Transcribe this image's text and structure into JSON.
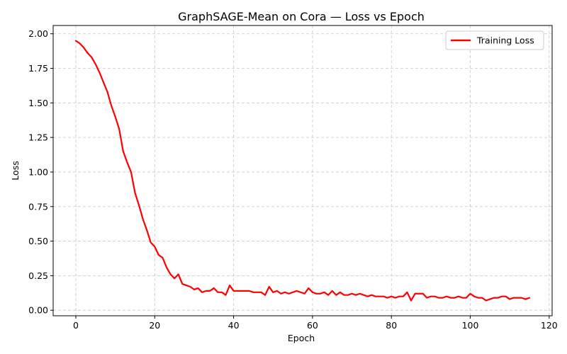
{
  "chart_data": {
    "type": "line",
    "title": "GraphSAGE-Mean on Cora — Loss vs Epoch",
    "xlabel": "Epoch",
    "ylabel": "Loss",
    "xlim": [
      -5.75,
      120.75
    ],
    "ylim": [
      -0.04,
      2.06
    ],
    "xticks": [
      0,
      20,
      40,
      60,
      80,
      100,
      120
    ],
    "yticks": [
      0.0,
      0.25,
      0.5,
      0.75,
      1.0,
      1.25,
      1.5,
      1.75,
      2.0
    ],
    "xtick_labels": [
      "0",
      "20",
      "40",
      "60",
      "80",
      "100",
      "120"
    ],
    "ytick_labels": [
      "0.00",
      "0.25",
      "0.50",
      "0.75",
      "1.00",
      "1.25",
      "1.50",
      "1.75",
      "2.00"
    ],
    "grid": true,
    "legend_position": "top-right",
    "series": [
      {
        "name": "Training Loss",
        "color": "#ff0000",
        "x": [
          0,
          1,
          2,
          3,
          4,
          5,
          6,
          7,
          8,
          9,
          10,
          11,
          12,
          13,
          14,
          15,
          16,
          17,
          18,
          19,
          20,
          21,
          22,
          23,
          24,
          25,
          26,
          27,
          28,
          29,
          30,
          31,
          32,
          33,
          34,
          35,
          36,
          37,
          38,
          39,
          40,
          41,
          42,
          43,
          44,
          45,
          46,
          47,
          48,
          49,
          50,
          51,
          52,
          53,
          54,
          55,
          56,
          57,
          58,
          59,
          60,
          61,
          62,
          63,
          64,
          65,
          66,
          67,
          68,
          69,
          70,
          71,
          72,
          73,
          74,
          75,
          76,
          77,
          78,
          79,
          80,
          81,
          82,
          83,
          84,
          85,
          86,
          87,
          88,
          89,
          90,
          91,
          92,
          93,
          94,
          95,
          96,
          97,
          98,
          99,
          100,
          101,
          102,
          103,
          104,
          105,
          106,
          107,
          108,
          109,
          110,
          111,
          112,
          113,
          114,
          115
        ],
        "y": [
          1.95,
          1.93,
          1.9,
          1.86,
          1.83,
          1.78,
          1.72,
          1.65,
          1.58,
          1.48,
          1.4,
          1.31,
          1.15,
          1.07,
          1.0,
          0.85,
          0.76,
          0.66,
          0.58,
          0.49,
          0.46,
          0.4,
          0.38,
          0.31,
          0.26,
          0.23,
          0.26,
          0.19,
          0.18,
          0.17,
          0.15,
          0.16,
          0.13,
          0.14,
          0.14,
          0.16,
          0.13,
          0.13,
          0.11,
          0.18,
          0.14,
          0.14,
          0.14,
          0.14,
          0.14,
          0.13,
          0.13,
          0.13,
          0.11,
          0.17,
          0.13,
          0.14,
          0.12,
          0.13,
          0.12,
          0.13,
          0.14,
          0.13,
          0.12,
          0.16,
          0.13,
          0.12,
          0.12,
          0.13,
          0.11,
          0.14,
          0.11,
          0.13,
          0.11,
          0.11,
          0.12,
          0.11,
          0.12,
          0.11,
          0.1,
          0.11,
          0.1,
          0.1,
          0.1,
          0.09,
          0.1,
          0.09,
          0.1,
          0.1,
          0.13,
          0.07,
          0.12,
          0.12,
          0.12,
          0.09,
          0.1,
          0.1,
          0.09,
          0.09,
          0.1,
          0.09,
          0.09,
          0.1,
          0.09,
          0.09,
          0.12,
          0.1,
          0.09,
          0.09,
          0.07,
          0.08,
          0.09,
          0.09,
          0.1,
          0.1,
          0.08,
          0.09,
          0.09,
          0.09,
          0.08,
          0.09
        ]
      }
    ]
  }
}
